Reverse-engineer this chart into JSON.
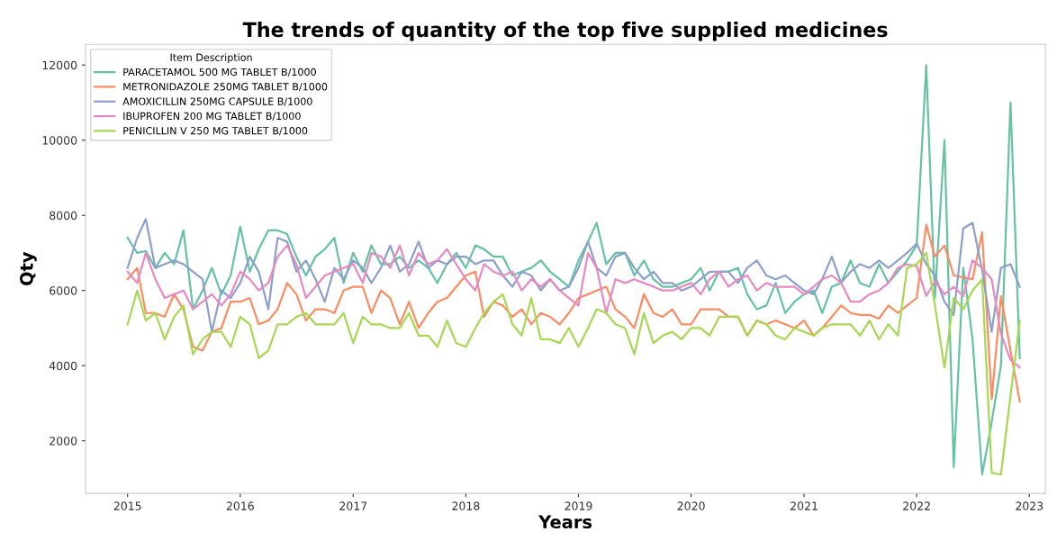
{
  "chart_data": {
    "type": "line",
    "title": "The trends of quantity of the top five supplied medicines",
    "xlabel": "Years",
    "ylabel": "Qty",
    "legend_title": "Item Description",
    "legend": "top left",
    "grid": false,
    "marker": "none",
    "line_style": "solid",
    "x": [
      "2015-01",
      "2015-02",
      "2015-03",
      "2015-04",
      "2015-05",
      "2015-06",
      "2015-07",
      "2015-08",
      "2015-09",
      "2015-10",
      "2015-11",
      "2015-12",
      "2016-01",
      "2016-02",
      "2016-03",
      "2016-04",
      "2016-05",
      "2016-06",
      "2016-07",
      "2016-08",
      "2016-09",
      "2016-10",
      "2016-11",
      "2016-12",
      "2017-01",
      "2017-02",
      "2017-03",
      "2017-04",
      "2017-05",
      "2017-06",
      "2017-07",
      "2017-08",
      "2017-09",
      "2017-10",
      "2017-11",
      "2017-12",
      "2018-01",
      "2018-02",
      "2018-03",
      "2018-04",
      "2018-05",
      "2018-06",
      "2018-07",
      "2018-08",
      "2018-09",
      "2018-10",
      "2018-11",
      "2018-12",
      "2019-01",
      "2019-02",
      "2019-03",
      "2019-04",
      "2019-05",
      "2019-06",
      "2019-07",
      "2019-08",
      "2019-09",
      "2019-10",
      "2019-11",
      "2019-12",
      "2020-01",
      "2020-02",
      "2020-03",
      "2020-04",
      "2020-05",
      "2020-06",
      "2020-07",
      "2020-08",
      "2020-09",
      "2020-10",
      "2020-11",
      "2020-12",
      "2021-01",
      "2021-02",
      "2021-03",
      "2021-04",
      "2021-05",
      "2021-06",
      "2021-07",
      "2021-08",
      "2021-09",
      "2021-10",
      "2021-11",
      "2021-12",
      "2022-01",
      "2022-02",
      "2022-03",
      "2022-04",
      "2022-05",
      "2022-06",
      "2022-07",
      "2022-08",
      "2022-09",
      "2022-10",
      "2022-11",
      "2022-12"
    ],
    "xlim": [
      "2014-08-18",
      "2023-02-22"
    ],
    "xticks": [
      "2015",
      "2016",
      "2017",
      "2018",
      "2019",
      "2020",
      "2021",
      "2022",
      "2023"
    ],
    "ylim": [
      600,
      12550
    ],
    "yticks": [
      2000,
      4000,
      6000,
      8000,
      10000,
      12000
    ],
    "series": [
      {
        "name": "PARACETAMOL 500 MG TABLET B/1000",
        "color": "#66c2a5",
        "values": [
          7400,
          7000,
          7050,
          6600,
          7000,
          6700,
          7600,
          5500,
          6000,
          6600,
          5900,
          6400,
          7700,
          6500,
          7100,
          7600,
          7600,
          7500,
          6900,
          6400,
          6900,
          7100,
          7400,
          6200,
          7000,
          6500,
          7200,
          6700,
          6700,
          6900,
          6600,
          6800,
          6600,
          6200,
          6700,
          7000,
          6600,
          7200,
          7100,
          6900,
          6900,
          6400,
          6500,
          6600,
          6800,
          6500,
          6300,
          6100,
          6800,
          7300,
          7800,
          6700,
          7000,
          7000,
          6400,
          6800,
          6300,
          6100,
          6100,
          6200,
          6300,
          6600,
          6000,
          6500,
          6500,
          6600,
          5900,
          5500,
          5600,
          6200,
          5400,
          5700,
          5900,
          6000,
          5400,
          6100,
          6200,
          6800,
          6200,
          6100,
          6700,
          6200,
          6500,
          6800,
          7200,
          12000,
          5800,
          10000,
          1300,
          6600,
          4700,
          1100,
          2500,
          4000,
          11000,
          4200
        ]
      },
      {
        "name": "METRONIDAZOLE 250MG TABLET B/1000",
        "color": "#fc8d62",
        "values": [
          6300,
          6600,
          5400,
          5400,
          5300,
          5900,
          5500,
          4500,
          4400,
          4900,
          5000,
          5700,
          5700,
          5800,
          5100,
          5200,
          5500,
          6200,
          5900,
          5200,
          5500,
          5500,
          5400,
          6000,
          6100,
          6100,
          5400,
          6000,
          5800,
          5100,
          5700,
          5000,
          5400,
          5700,
          5800,
          6100,
          6400,
          6500,
          5300,
          5700,
          5600,
          5300,
          5500,
          5100,
          5400,
          5300,
          5100,
          5400,
          5800,
          5900,
          6000,
          6100,
          5500,
          5300,
          5000,
          5900,
          5400,
          5300,
          5500,
          5100,
          5100,
          5500,
          5500,
          5500,
          5300,
          5300,
          4800,
          5200,
          5100,
          5200,
          5100,
          5000,
          5200,
          4800,
          5000,
          5300,
          5600,
          5400,
          5350,
          5350,
          5250,
          5600,
          5400,
          5600,
          5800,
          7750,
          6900,
          7200,
          6400,
          6350,
          6300,
          7550,
          3100,
          5850,
          4400,
          3050
        ]
      },
      {
        "name": "AMOXICILLIN 250MG CAPSULE B/1000",
        "color": "#8da0cb",
        "values": [
          6600,
          7400,
          7900,
          6600,
          6700,
          6800,
          6700,
          6500,
          6300,
          4900,
          6000,
          5800,
          6200,
          6900,
          6500,
          5500,
          7400,
          7300,
          6500,
          6800,
          6300,
          5700,
          6600,
          6300,
          6800,
          6600,
          6200,
          6600,
          7200,
          6500,
          6700,
          7300,
          6600,
          6800,
          6700,
          6900,
          6900,
          6700,
          6800,
          6800,
          6400,
          6100,
          6500,
          6400,
          6000,
          6300,
          6000,
          6100,
          6600,
          7300,
          6600,
          6400,
          6900,
          7000,
          6600,
          6300,
          6500,
          6200,
          6200,
          6000,
          6100,
          6300,
          6500,
          6500,
          6500,
          6200,
          6600,
          6800,
          6400,
          6300,
          6400,
          6200,
          6000,
          5900,
          6300,
          6900,
          6200,
          6500,
          6700,
          6600,
          6800,
          6600,
          6800,
          7000,
          7250,
          6700,
          6400,
          5700,
          5350,
          7650,
          7800,
          6550,
          4900,
          6600,
          6700,
          6100
        ]
      },
      {
        "name": "IBUPROFEN 200 MG TABLET B/1000",
        "color": "#e78ac3",
        "values": [
          6500,
          6200,
          7000,
          6300,
          5800,
          5900,
          6000,
          5500,
          5700,
          5900,
          5600,
          5900,
          6500,
          6300,
          6000,
          6200,
          6900,
          7200,
          6700,
          5800,
          6100,
          6400,
          6500,
          6600,
          6700,
          6200,
          7000,
          6900,
          6600,
          7200,
          6400,
          7000,
          6700,
          6800,
          7100,
          6700,
          6300,
          6000,
          6700,
          6500,
          6400,
          6500,
          6000,
          6300,
          6100,
          6300,
          6000,
          5800,
          5600,
          7000,
          6600,
          5400,
          6300,
          6200,
          6300,
          6200,
          6100,
          6000,
          6000,
          6100,
          6200,
          5900,
          6300,
          6500,
          6100,
          6300,
          6400,
          6000,
          6200,
          6100,
          6100,
          6100,
          5900,
          6100,
          6300,
          6400,
          6200,
          5700,
          5700,
          5900,
          6000,
          6200,
          6600,
          6700,
          6650,
          5850,
          6250,
          5900,
          6100,
          5850,
          6800,
          6600,
          6300,
          4850,
          4150,
          3950
        ]
      },
      {
        "name": "PENICILLIN V 250 MG TABLET B/1000",
        "color": "#a6d854",
        "values": [
          5100,
          6000,
          5200,
          5400,
          4700,
          5300,
          5600,
          4300,
          4700,
          4900,
          4900,
          4500,
          5300,
          5100,
          4200,
          4400,
          5100,
          5100,
          5300,
          5400,
          5100,
          5100,
          5100,
          5400,
          4600,
          5300,
          5100,
          5100,
          5000,
          5000,
          5400,
          4800,
          4800,
          4500,
          5200,
          4600,
          4500,
          5000,
          5400,
          5700,
          5900,
          5100,
          4800,
          5800,
          4700,
          4700,
          4600,
          5000,
          4500,
          5000,
          5500,
          5400,
          5100,
          5000,
          4300,
          5400,
          4600,
          4800,
          4900,
          4700,
          5000,
          5000,
          4800,
          5300,
          5300,
          5300,
          4800,
          5200,
          5100,
          4800,
          4700,
          5000,
          4900,
          4800,
          5000,
          5100,
          5100,
          5100,
          4800,
          5200,
          4700,
          5100,
          4800,
          6600,
          6700,
          7000,
          5600,
          3950,
          5800,
          5500,
          6000,
          6300,
          1150,
          1100,
          3200,
          5200
        ]
      }
    ]
  }
}
